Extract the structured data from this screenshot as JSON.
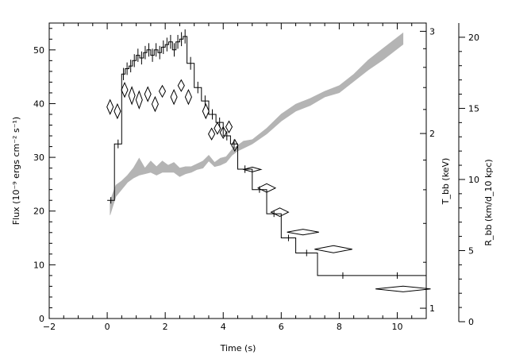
{
  "chart_data": {
    "type": "line",
    "xlabel": "Time (s)",
    "xlim": [
      -2,
      11
    ],
    "x_ticks": [
      -2,
      0,
      2,
      4,
      6,
      8,
      10
    ],
    "ylabel_left": "Flux (10⁻⁹ ergs cm⁻² s⁻¹)",
    "ylim_left": [
      0,
      55
    ],
    "y_ticks_left": [
      0,
      10,
      20,
      30,
      40,
      50
    ],
    "ylabel_mid": "T_bb (keV)",
    "ylim_mid": [
      0.96,
      3.1
    ],
    "y_ticks_mid": [
      1,
      2,
      3
    ],
    "y_scale_mid": "log",
    "ylabel_right": "R_bb (km/d_10 kpc)",
    "ylim_right": [
      0,
      21
    ],
    "y_ticks_right": [
      0,
      5,
      10,
      15,
      20
    ],
    "grid": false,
    "series": [
      {
        "name": "Flux",
        "style": "step",
        "axis": "left",
        "edges": [
          0.0,
          0.25,
          0.5,
          0.62,
          0.75,
          0.87,
          1.0,
          1.12,
          1.25,
          1.37,
          1.5,
          1.62,
          1.75,
          1.87,
          2.0,
          2.12,
          2.25,
          2.37,
          2.5,
          2.62,
          2.75,
          3.0,
          3.25,
          3.5,
          3.75,
          4.0,
          4.25,
          4.5,
          5.0,
          5.5,
          6.0,
          6.5,
          7.25,
          9.0,
          11.0
        ],
        "values": [
          22,
          32.5,
          45.5,
          46.5,
          47,
          48,
          49,
          48.5,
          49.5,
          50,
          49,
          50,
          49.5,
          50.5,
          51,
          51.5,
          50,
          51.5,
          52,
          52.5,
          47.5,
          43,
          40.5,
          38,
          36.5,
          34,
          32.5,
          27.8,
          24,
          19.5,
          15,
          12.2,
          8,
          8
        ]
      },
      {
        "name": "Temperature",
        "style": "diamond",
        "axis": "right",
        "x": [
          0.1,
          0.35,
          0.6,
          0.85,
          1.1,
          1.4,
          1.65,
          1.9,
          2.3,
          2.55,
          2.8,
          3.4,
          3.6,
          3.8,
          4.0,
          4.2,
          4.4,
          5.0,
          5.5,
          5.95,
          6.75,
          7.8,
          10.2
        ],
        "y": [
          15.1,
          14.8,
          16.3,
          15.9,
          15.6,
          16.0,
          15.3,
          16.2,
          15.8,
          16.6,
          15.8,
          14.8,
          13.2,
          13.6,
          13.3,
          13.7,
          12.4,
          10.7,
          9.4,
          7.7,
          6.3,
          5.1,
          2.3
        ],
        "xerr": [
          0.05,
          0.05,
          0.05,
          0.05,
          0.05,
          0.05,
          0.05,
          0.05,
          0.05,
          0.05,
          0.05,
          0.05,
          0.05,
          0.05,
          0.05,
          0.05,
          0.05,
          0.3,
          0.3,
          0.3,
          0.55,
          0.65,
          0.95
        ],
        "yerr": [
          0.5,
          0.5,
          0.5,
          0.6,
          0.6,
          0.5,
          0.5,
          0.4,
          0.5,
          0.4,
          0.5,
          0.5,
          0.4,
          0.4,
          0.4,
          0.4,
          0.4,
          0.15,
          0.3,
          0.3,
          0.2,
          0.25,
          0.2
        ]
      },
      {
        "name": "Radius",
        "style": "band",
        "axis": "right",
        "x": [
          0.1,
          0.3,
          0.5,
          0.7,
          0.9,
          1.1,
          1.3,
          1.5,
          1.7,
          1.9,
          2.1,
          2.3,
          2.5,
          2.7,
          2.9,
          3.1,
          3.3,
          3.5,
          3.7,
          3.9,
          4.1,
          4.3,
          4.5,
          4.7,
          5.0,
          5.5,
          6.0,
          6.5,
          7.0,
          7.5,
          8.0,
          8.5,
          9.0,
          9.5,
          10.2
        ],
        "lower": [
          7.5,
          8.8,
          9.3,
          9.8,
          10.1,
          10.3,
          10.4,
          10.5,
          10.3,
          10.5,
          10.5,
          10.5,
          10.2,
          10.4,
          10.5,
          10.7,
          10.8,
          11.3,
          10.9,
          11.0,
          11.2,
          11.7,
          12.0,
          12.2,
          12.5,
          13.2,
          14.1,
          14.8,
          15.2,
          15.8,
          16.1,
          16.9,
          17.7,
          18.4,
          19.5
        ],
        "upper": [
          8.5,
          9.6,
          9.9,
          10.3,
          10.8,
          11.5,
          10.8,
          11.3,
          10.9,
          11.3,
          11.0,
          11.2,
          10.8,
          10.9,
          10.9,
          11.1,
          11.3,
          11.7,
          11.2,
          11.5,
          11.6,
          12.1,
          12.4,
          12.7,
          12.8,
          13.6,
          14.6,
          15.3,
          15.7,
          16.2,
          16.6,
          17.4,
          18.4,
          19.2,
          20.3
        ]
      }
    ]
  }
}
